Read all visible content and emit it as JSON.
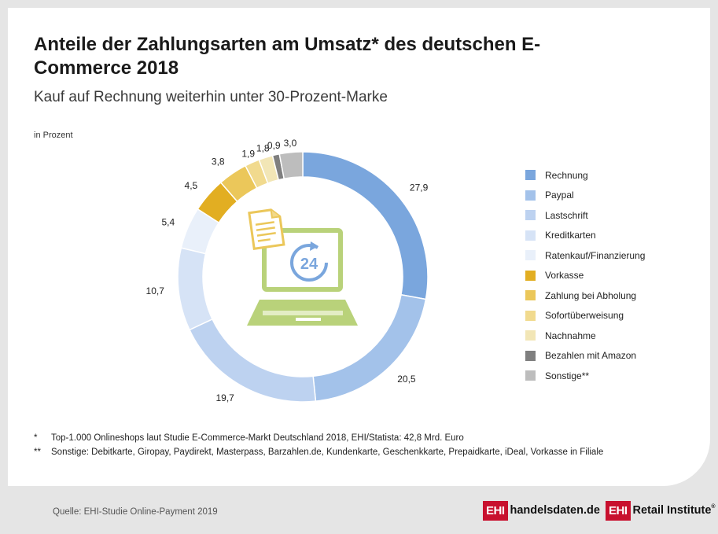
{
  "header": {
    "title": "Anteile der Zahlungsarten am Umsatz* des deutschen E-Commerce 2018",
    "subtitle": "Kauf auf Rechnung weiterhin unter 30-Prozent-Marke",
    "unit": "in Prozent"
  },
  "chart_data": {
    "type": "pie",
    "variant": "donut",
    "categories": [
      "Rechnung",
      "Paypal",
      "Lastschrift",
      "Kreditkarten",
      "Ratenkauf/Finanzierung",
      "Vorkasse",
      "Zahlung bei Abholung",
      "Sofortüberweisung",
      "Nachnahme",
      "Bezahlen mit Amazon",
      "Sonstige**"
    ],
    "values": [
      27.9,
      20.5,
      19.7,
      10.7,
      5.4,
      4.5,
      3.8,
      1.9,
      1.8,
      0.9,
      3.0
    ],
    "value_labels": [
      "27,9",
      "20,5",
      "19,7",
      "10,7",
      "5,4",
      "4,5",
      "3,8",
      "1,9",
      "1,8",
      "0,9",
      "3,0"
    ],
    "colors": [
      "#7aa6dd",
      "#a3c2ea",
      "#bdd2f0",
      "#d6e3f6",
      "#e9f0fa",
      "#e2ae22",
      "#ebc75a",
      "#f1da8e",
      "#f2e6b6",
      "#7f7f7f",
      "#bdbdbd"
    ],
    "legend_position": "right",
    "center_icon": "laptop-24h-invoice-icon"
  },
  "footnotes": [
    {
      "marker": "*",
      "text": "Top-1.000 Onlineshops laut Studie E-Commerce-Markt Deutschland 2018, EHI/Statista: 42,8 Mrd. Euro"
    },
    {
      "marker": "**",
      "text": "Sonstige: Debitkarte, Giropay, Paydirekt, Masterpass, Barzahlen.de, Kundenkarte, Geschenkkarte, Prepaidkarte, iDeal, Vorkasse in Filiale"
    }
  ],
  "footer": {
    "source": "Quelle: EHI-Studie Online-Payment 2019",
    "logo1_mark": "EHI",
    "logo1_text": "handelsdaten.de",
    "logo2_mark": "EHI",
    "logo2_text": "Retail Institute",
    "logo2_reg": "®"
  }
}
